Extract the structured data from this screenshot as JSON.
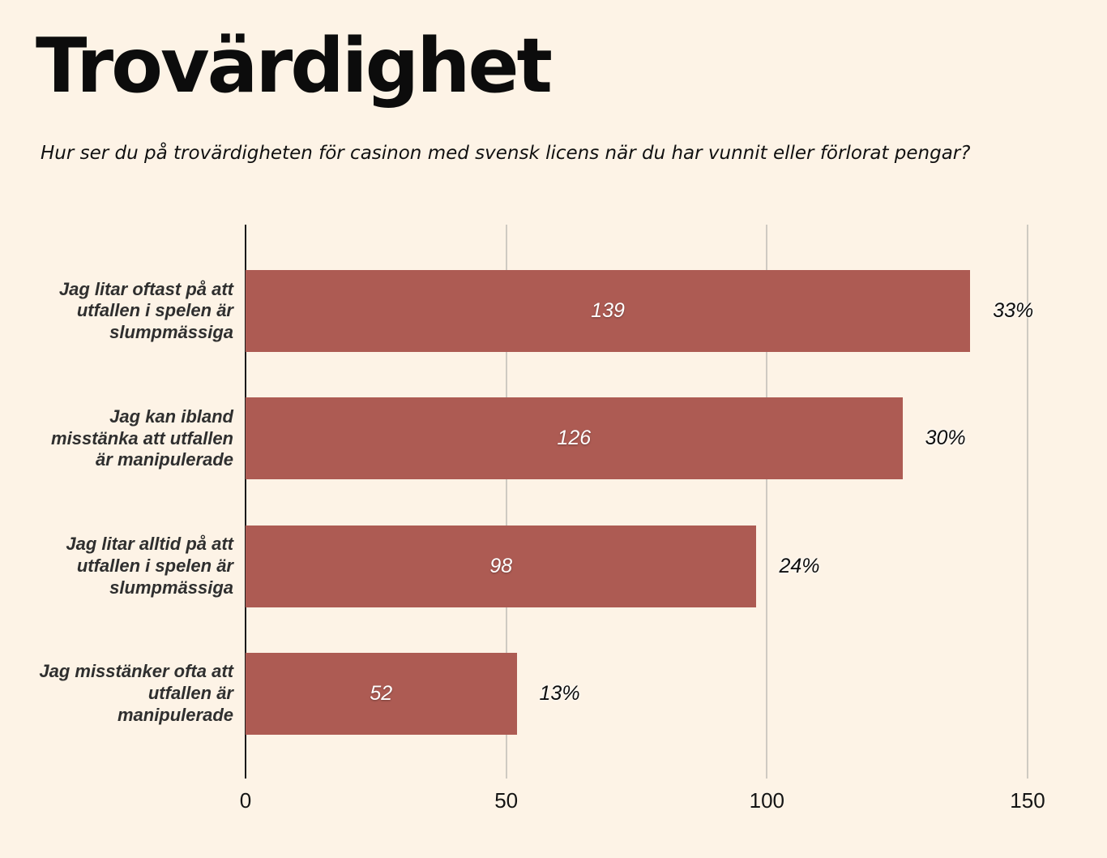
{
  "page": {
    "title": "Trovärdighet",
    "subtitle": "Hur ser du på trovärdigheten för casinon med svensk licens när du har vunnit eller förlorat pengar?",
    "background_color": "#fdf3e6"
  },
  "chart_data": {
    "type": "bar",
    "orientation": "horizontal",
    "title": "Trovärdighet",
    "subtitle": "Hur ser du på trovärdigheten för casinon med svensk licens när du har vunnit eller förlorat pengar?",
    "categories": [
      "Jag litar oftast på att utfallen i spelen är slumpmässiga",
      "Jag kan ibland misstänka att utfallen är manipulerade",
      "Jag litar alltid på att utfallen i spelen är slumpmässiga",
      "Jag misstänker ofta att utfallen är manipulerade"
    ],
    "values": [
      139,
      126,
      98,
      52
    ],
    "percent_labels": [
      "33%",
      "30%",
      "24%",
      "13%"
    ],
    "value_label_position": "center-inside",
    "percent_label_position": "outside-right",
    "x_ticks": [
      0,
      50,
      100,
      150
    ],
    "xlim": [
      0,
      150
    ],
    "grid": true,
    "legend": "none",
    "bar_color": "#ad5b53",
    "background_color": "#fdf3e6"
  }
}
